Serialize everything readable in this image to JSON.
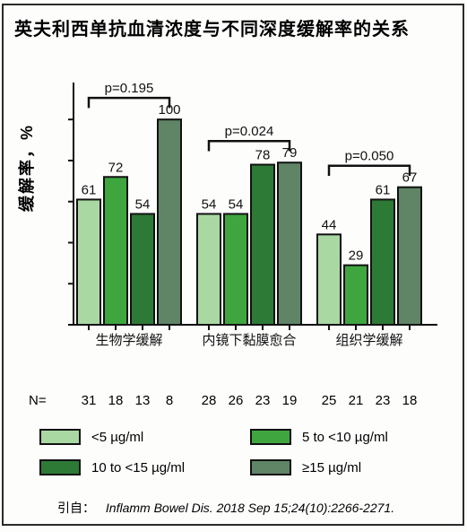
{
  "title": {
    "text": "英夫利西单抗血清浓度与不同深度缓解率的关系",
    "fontsize": 20
  },
  "ylabel": "缓解率，%",
  "chart": {
    "type": "bar",
    "ylim": [
      0,
      118
    ],
    "ytick_step": 20,
    "yticks": [
      0,
      20,
      40,
      60,
      80,
      100
    ],
    "background_color": "#fdfdfc",
    "axis_color": "#111111",
    "bar_border": "#111111",
    "bar_width": 0.72,
    "groups": [
      {
        "label": "生物学缓解",
        "values": [
          61,
          72,
          54,
          100
        ],
        "n": [
          31,
          18,
          13,
          8
        ],
        "pvalue": "p=0.195"
      },
      {
        "label": "内镜下黏膜愈合",
        "values": [
          54,
          54,
          78,
          79
        ],
        "n": [
          28,
          26,
          23,
          19
        ],
        "pvalue": "p=0.024"
      },
      {
        "label": "组织学缓解",
        "values": [
          44,
          29,
          61,
          67
        ],
        "n": [
          25,
          21,
          23,
          18
        ],
        "pvalue": "p=0.050"
      }
    ],
    "series": [
      {
        "label": "<5 µg/ml",
        "color": "#a9d8a3"
      },
      {
        "label": "5 to <10 µg/ml",
        "color": "#3fa63f"
      },
      {
        "label": "10 to <15 µg/ml",
        "color": "#2d7a36"
      },
      {
        "label": "≥15 µg/ml",
        "color": "#5f8466"
      }
    ]
  },
  "n_prefix": "N=",
  "citation": {
    "lead": "引自：",
    "text": "Inflamm Bowel Dis. 2018 Sep 15;24(10):2266-2271."
  }
}
